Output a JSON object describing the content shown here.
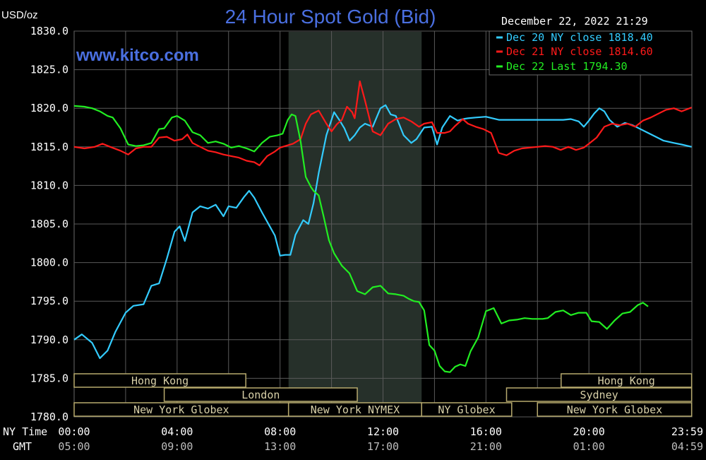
{
  "header": {
    "title": "24 Hour Spot Gold (Bid)",
    "unit": "USD/oz",
    "timestamp": "December 22, 2022 21:29",
    "watermark": "www.kitco.com"
  },
  "colors": {
    "background": "#000000",
    "grid": "#5a5a5a",
    "title": "#4a6fe0",
    "dec20": "#33ccff",
    "dec21": "#ff1a1a",
    "dec22": "#22ee22",
    "session_fill": "#26302a",
    "market_border": "#b7aa6e",
    "market_text": "#d8d0a8"
  },
  "chart_data": {
    "type": "line",
    "title": "24 Hour Spot Gold (Bid)",
    "ylabel": "USD/oz",
    "ylim": [
      1780,
      1830
    ],
    "yticks": [
      "1830.0",
      "1825.0",
      "1820.0",
      "1815.0",
      "1810.0",
      "1805.0",
      "1800.0",
      "1795.0",
      "1790.0",
      "1785.0",
      "1780.0"
    ],
    "xlim": [
      0,
      24
    ],
    "grid": true,
    "legend_position": "top-right",
    "x_row_labels": [
      "NY Time",
      "GMT"
    ],
    "x_ticks_ny": [
      "00:00",
      "04:00",
      "08:00",
      "12:00",
      "16:00",
      "20:00",
      "23:59"
    ],
    "x_ticks_gmt": [
      "05:00",
      "09:00",
      "13:00",
      "17:00",
      "21:00",
      "01:00",
      "04:59"
    ],
    "highlight_hours": [
      8.33,
      13.5
    ],
    "series": [
      {
        "name": "Dec 20 NY close 1818.40",
        "color": "#33ccff",
        "x": [
          0,
          0.3,
          0.7,
          1.0,
          1.3,
          1.6,
          2.0,
          2.3,
          2.7,
          3.0,
          3.3,
          3.6,
          3.9,
          4.1,
          4.3,
          4.6,
          4.9,
          5.2,
          5.5,
          5.8,
          6.0,
          6.3,
          6.6,
          6.8,
          7.0,
          7.3,
          7.6,
          7.8,
          8.0,
          8.2,
          8.4,
          8.6,
          8.9,
          9.1,
          9.3,
          9.5,
          9.8,
          10.1,
          10.3,
          10.5,
          10.7,
          10.9,
          11.1,
          11.3,
          11.6,
          11.9,
          12.1,
          12.3,
          12.5,
          12.8,
          13.1,
          13.3,
          13.6,
          13.9,
          14.1,
          14.3,
          14.6,
          14.9,
          15.1,
          15.3,
          15.6,
          16.0,
          16.5,
          17.0,
          17.5,
          18.0,
          18.5,
          19.0,
          19.3,
          19.6,
          19.8,
          20.0,
          20.2,
          20.4,
          20.6,
          20.8,
          21.1,
          21.4,
          21.7,
          22.0,
          22.3,
          22.6,
          22.9,
          23.3,
          23.6,
          23.99
        ],
        "values": [
          1790.0,
          1790.7,
          1789.6,
          1787.6,
          1788.6,
          1791.0,
          1793.5,
          1794.4,
          1794.6,
          1797.0,
          1797.3,
          1800.5,
          1804.0,
          1804.7,
          1802.8,
          1806.5,
          1807.3,
          1807.0,
          1807.5,
          1806.0,
          1807.3,
          1807.1,
          1808.5,
          1809.3,
          1808.4,
          1806.5,
          1804.7,
          1803.5,
          1800.9,
          1801.0,
          1801.0,
          1803.6,
          1805.5,
          1805.0,
          1807.7,
          1811.6,
          1816.5,
          1819.5,
          1818.5,
          1817.4,
          1815.8,
          1816.5,
          1817.5,
          1818.0,
          1817.6,
          1820.0,
          1820.4,
          1819.2,
          1819.0,
          1816.5,
          1815.5,
          1816.0,
          1817.5,
          1817.6,
          1815.3,
          1817.5,
          1819.0,
          1818.4,
          1818.6,
          1818.7,
          1818.8,
          1818.9,
          1818.5,
          1818.5,
          1818.5,
          1818.5,
          1818.5,
          1818.5,
          1818.6,
          1818.3,
          1817.6,
          1818.4,
          1819.3,
          1820.0,
          1819.6,
          1818.5,
          1817.6,
          1818.1,
          1817.8,
          1817.3,
          1816.8,
          1816.3,
          1815.8,
          1815.5,
          1815.3,
          1815.0
        ]
      },
      {
        "name": "Dec 21 NY close 1814.60",
        "color": "#ff1a1a",
        "x": [
          0,
          0.4,
          0.8,
          1.1,
          1.4,
          1.8,
          2.1,
          2.4,
          2.7,
          3.0,
          3.3,
          3.6,
          3.9,
          4.2,
          4.4,
          4.6,
          4.9,
          5.2,
          5.5,
          5.8,
          6.1,
          6.4,
          6.7,
          7.0,
          7.2,
          7.5,
          7.8,
          8.0,
          8.2,
          8.5,
          8.8,
          9.0,
          9.2,
          9.5,
          9.8,
          10.0,
          10.2,
          10.4,
          10.6,
          10.8,
          10.9,
          11.1,
          11.3,
          11.6,
          11.9,
          12.2,
          12.5,
          12.8,
          13.1,
          13.4,
          13.6,
          13.9,
          14.1,
          14.4,
          14.6,
          14.8,
          15.1,
          15.3,
          15.6,
          15.9,
          16.2,
          16.5,
          16.8,
          17.1,
          17.4,
          17.7,
          18.0,
          18.3,
          18.6,
          18.9,
          19.2,
          19.5,
          19.8,
          20.0,
          20.3,
          20.6,
          20.9,
          21.2,
          21.5,
          21.8,
          22.1,
          22.4,
          22.7,
          23.0,
          23.3,
          23.6,
          23.99
        ],
        "values": [
          1815.0,
          1814.8,
          1815.0,
          1815.4,
          1815.0,
          1814.5,
          1814.0,
          1814.8,
          1815.0,
          1815.0,
          1816.2,
          1816.3,
          1815.8,
          1816.0,
          1816.6,
          1815.5,
          1815.0,
          1814.5,
          1814.3,
          1814.0,
          1813.8,
          1813.6,
          1813.2,
          1813.0,
          1812.6,
          1813.8,
          1814.4,
          1814.9,
          1815.1,
          1815.4,
          1816.0,
          1818.0,
          1819.2,
          1819.7,
          1818.0,
          1817.0,
          1817.9,
          1818.5,
          1820.2,
          1819.5,
          1818.7,
          1823.5,
          1821.0,
          1817.0,
          1816.5,
          1818.0,
          1818.6,
          1818.8,
          1818.3,
          1817.6,
          1818.0,
          1818.2,
          1816.8,
          1816.8,
          1817.0,
          1817.7,
          1818.6,
          1818.0,
          1817.6,
          1817.3,
          1816.8,
          1814.2,
          1813.9,
          1814.5,
          1814.8,
          1814.9,
          1815.0,
          1815.1,
          1815.0,
          1814.6,
          1815.0,
          1814.6,
          1814.9,
          1815.4,
          1816.2,
          1817.6,
          1818.0,
          1817.8,
          1818.0,
          1817.6,
          1818.4,
          1818.8,
          1819.3,
          1819.8,
          1820.0,
          1819.6,
          1820.1
        ]
      },
      {
        "name": "Dec 22 Last 1794.30",
        "color": "#22ee22",
        "x": [
          0,
          0.4,
          0.7,
          1.0,
          1.3,
          1.5,
          1.8,
          2.1,
          2.4,
          2.7,
          3.0,
          3.3,
          3.5,
          3.8,
          4.0,
          4.3,
          4.6,
          4.9,
          5.2,
          5.5,
          5.8,
          6.1,
          6.4,
          6.7,
          7.0,
          7.3,
          7.6,
          7.9,
          8.1,
          8.3,
          8.45,
          8.6,
          8.8,
          9.0,
          9.2,
          9.3,
          9.5,
          9.7,
          9.9,
          10.1,
          10.4,
          10.7,
          11.0,
          11.3,
          11.6,
          11.9,
          12.2,
          12.5,
          12.8,
          13.0,
          13.2,
          13.4,
          13.6,
          13.8,
          14.0,
          14.2,
          14.4,
          14.6,
          14.8,
          15.0,
          15.2,
          15.4,
          15.7,
          16.0,
          16.3,
          16.6,
          16.9,
          17.2,
          17.5,
          17.8,
          18.0,
          18.2,
          18.4,
          18.7,
          19.0,
          19.3,
          19.6,
          19.9,
          20.1,
          20.4,
          20.7,
          21.0,
          21.3,
          21.6,
          21.9,
          22.1,
          22.3
        ],
        "values": [
          1820.3,
          1820.2,
          1820.0,
          1819.6,
          1819.0,
          1818.8,
          1817.4,
          1815.3,
          1815.1,
          1815.2,
          1815.5,
          1817.3,
          1817.4,
          1818.8,
          1819.0,
          1818.4,
          1816.9,
          1816.5,
          1815.5,
          1815.7,
          1815.4,
          1814.9,
          1815.1,
          1814.8,
          1814.4,
          1815.5,
          1816.3,
          1816.5,
          1816.7,
          1818.5,
          1819.2,
          1819.0,
          1815.7,
          1811.1,
          1809.8,
          1809.3,
          1808.7,
          1805.9,
          1802.9,
          1801.2,
          1799.6,
          1798.6,
          1796.3,
          1795.9,
          1796.8,
          1797.0,
          1796.0,
          1795.9,
          1795.7,
          1795.3,
          1795.0,
          1794.9,
          1793.8,
          1789.3,
          1788.6,
          1786.6,
          1785.9,
          1785.8,
          1786.5,
          1786.8,
          1786.6,
          1788.5,
          1790.3,
          1793.7,
          1794.1,
          1792.1,
          1792.5,
          1792.6,
          1792.8,
          1792.7,
          1792.7,
          1792.7,
          1792.8,
          1793.6,
          1793.8,
          1793.2,
          1793.5,
          1793.5,
          1792.4,
          1792.3,
          1791.4,
          1792.5,
          1793.4,
          1793.6,
          1794.5,
          1794.8,
          1794.3
        ]
      }
    ]
  },
  "market_rows": [
    {
      "label": "Hong Kong",
      "start": 0.0,
      "end": 6.67
    },
    {
      "label": "Hong Kong",
      "start": 18.92,
      "end": 23.99
    },
    {
      "label": "London",
      "start": 3.5,
      "end": 11.0
    },
    {
      "label": "Sydney",
      "start": 16.8,
      "end": 23.99
    },
    {
      "label": "New York Globex",
      "start": 0.0,
      "end": 8.33
    },
    {
      "label": "New York NYMEX",
      "start": 8.33,
      "end": 13.5
    },
    {
      "label": "NY Globex",
      "start": 13.5,
      "end": 17.0
    },
    {
      "label": "New York Globex",
      "start": 18.0,
      "end": 23.99
    }
  ]
}
